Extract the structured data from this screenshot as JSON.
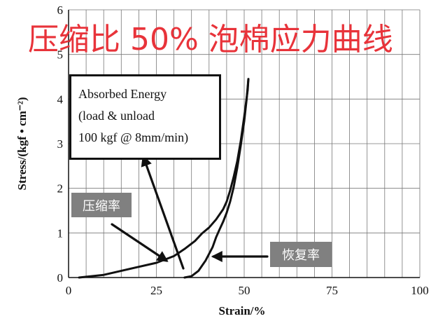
{
  "title": "压缩比 50% 泡棉应力曲线",
  "box": {
    "line1": "Absorbed Energy",
    "line2": "(load & unload",
    "line3": "100 kgf @ 8mm/min)"
  },
  "annotations": {
    "compression": "压缩率",
    "recovery": "恢复率"
  },
  "chart_data": {
    "type": "line",
    "title": "压缩比 50% 泡棉应力曲线",
    "xlabel": "Strain/%",
    "ylabel": "Stress/(kgf • cm⁻²)",
    "xlim": [
      0,
      100
    ],
    "ylim": [
      0,
      6
    ],
    "xticks": [
      0,
      25,
      50,
      75,
      100
    ],
    "yticks": [
      0,
      1,
      2,
      3,
      4,
      5,
      6
    ],
    "grid": true,
    "color": "#111111",
    "series": [
      {
        "x": [
          3,
          10,
          15,
          20,
          25,
          30,
          33,
          36,
          38,
          40,
          42,
          44,
          45,
          46,
          47,
          48,
          49,
          50,
          51,
          51.2
        ],
        "y": [
          0,
          0.06,
          0.15,
          0.24,
          0.33,
          0.48,
          0.64,
          0.82,
          0.99,
          1.12,
          1.3,
          1.53,
          1.7,
          1.95,
          2.25,
          2.6,
          3.05,
          3.6,
          4.2,
          4.45
        ]
      },
      {
        "x": [
          33,
          35,
          37,
          39,
          41,
          42,
          43,
          44,
          45,
          46,
          47,
          48,
          49,
          50,
          50.7,
          51.2
        ],
        "y": [
          0,
          0.03,
          0.15,
          0.38,
          0.68,
          0.9,
          1.08,
          1.25,
          1.45,
          1.7,
          2.02,
          2.45,
          2.95,
          3.5,
          4.0,
          4.45
        ]
      }
    ]
  }
}
